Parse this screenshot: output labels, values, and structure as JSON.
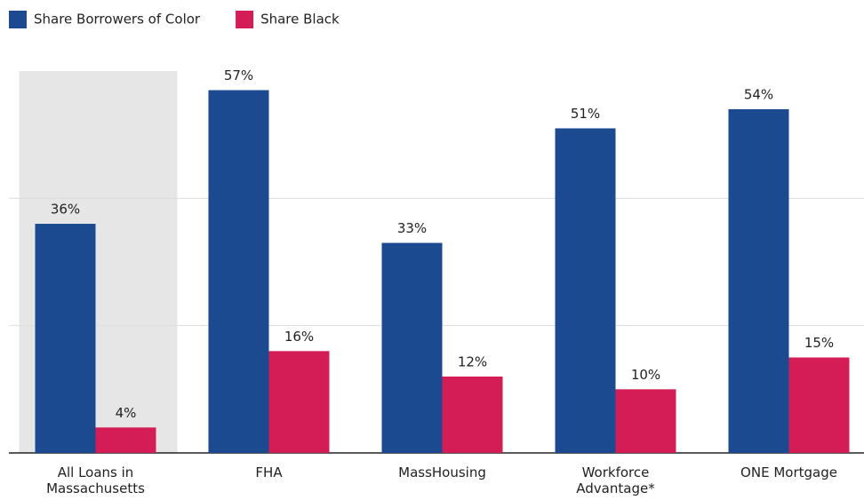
{
  "chart_data": {
    "type": "bar",
    "categories": [
      "All Loans in Massachusetts",
      "FHA",
      "MassHousing",
      "Workforce Advantage*",
      "ONE Mortgage"
    ],
    "series": [
      {
        "name": "Share Borrowers of Color",
        "color": "#1b4a91",
        "values": [
          36,
          57,
          33,
          51,
          54
        ],
        "value_labels": [
          "36%",
          "57%",
          "33%",
          "51%",
          "54%"
        ]
      },
      {
        "name": "Share Black",
        "color": "#d41c56",
        "values": [
          4,
          16,
          12,
          10,
          15
        ],
        "value_labels": [
          "4%",
          "16%",
          "12%",
          "10%",
          "15%"
        ]
      }
    ],
    "ylim": [
      0,
      60
    ],
    "yticks": [
      0,
      20,
      40
    ],
    "grid": true,
    "legend": "top-left",
    "highlight_index": 0
  }
}
